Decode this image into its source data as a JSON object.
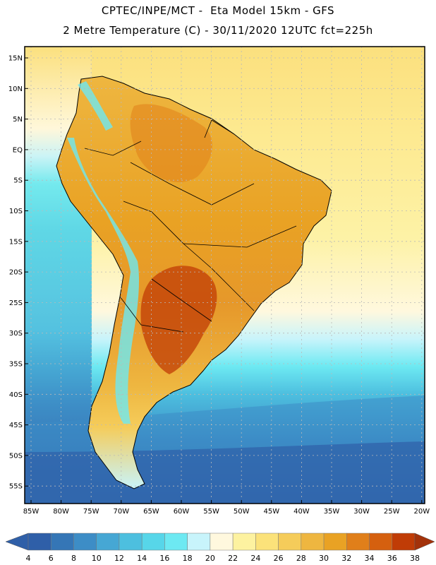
{
  "header": {
    "line1": "CPTEC/INPE/MCT -  Eta Model 15km - GFS",
    "line2": "2 Metre Temperature (C) - 30/11/2020 12UTC fct=225h"
  },
  "map": {
    "lat_labels": [
      "15N",
      "10N",
      "5N",
      "EQ",
      "5S",
      "10S",
      "15S",
      "20S",
      "25S",
      "30S",
      "35S",
      "40S",
      "45S",
      "50S",
      "55S"
    ],
    "lon_labels": [
      "85W",
      "80W",
      "75W",
      "70W",
      "65W",
      "60W",
      "55W",
      "50W",
      "45W",
      "40W",
      "35W",
      "30W",
      "25W",
      "20W"
    ]
  },
  "colorbar": {
    "labels": [
      "4",
      "6",
      "8",
      "10",
      "12",
      "14",
      "16",
      "18",
      "20",
      "22",
      "24",
      "26",
      "28",
      "30",
      "32",
      "34",
      "36",
      "38"
    ],
    "colors": [
      "#2f5fa8",
      "#3576b6",
      "#3d8dc6",
      "#46a7d4",
      "#4dbfdf",
      "#57d6e9",
      "#6de9f2",
      "#c8f4fb",
      "#fff8de",
      "#fdf2a0",
      "#fbe27a",
      "#f5cc5a",
      "#eeb640",
      "#e9a224",
      "#e07f1a",
      "#d5600f",
      "#c03c06",
      "#a3320a"
    ]
  }
}
